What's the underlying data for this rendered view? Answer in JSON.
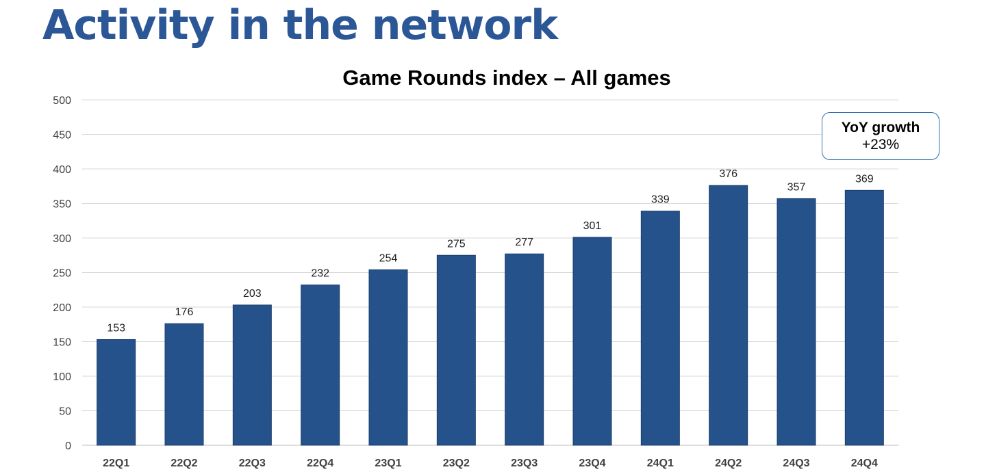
{
  "slide": {
    "title": "Activity in the network"
  },
  "callout": {
    "line1": "YoY growth",
    "line2": "+23%"
  },
  "colors": {
    "bar": "#26528c",
    "title": "#2b5797",
    "callout_border": "#2e6fae"
  },
  "chart_data": {
    "type": "bar",
    "title": "Game Rounds index – All games",
    "categories": [
      "22Q1",
      "22Q2",
      "22Q3",
      "22Q4",
      "23Q1",
      "23Q2",
      "23Q3",
      "23Q4",
      "24Q1",
      "24Q2",
      "24Q3",
      "24Q4"
    ],
    "values": [
      153,
      176,
      203,
      232,
      254,
      275,
      277,
      301,
      339,
      376,
      357,
      369
    ],
    "ylim": [
      0,
      500
    ],
    "yticks": [
      0,
      50,
      100,
      150,
      200,
      250,
      300,
      350,
      400,
      450,
      500
    ],
    "grid": true,
    "data_labels": true
  }
}
